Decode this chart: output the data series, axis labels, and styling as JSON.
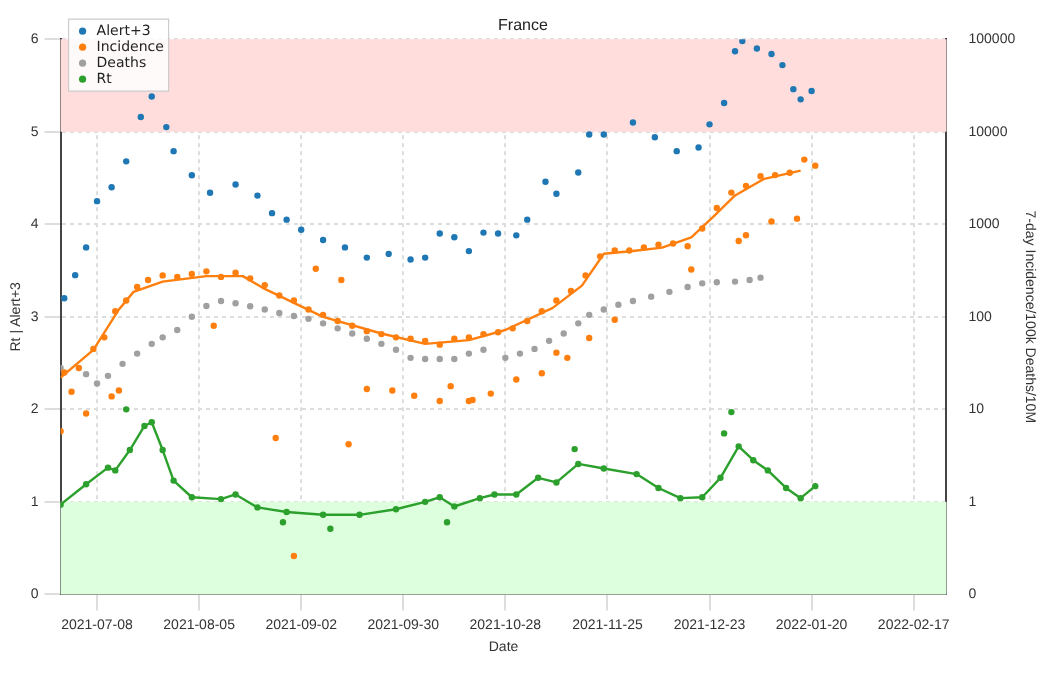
{
  "chart_data": {
    "type": "scatter",
    "title": "France",
    "xlabel": "Date",
    "ylabel": "Rt | Alert+3",
    "y2label": "7-day Incidence/100k Deaths/10M",
    "xlim": [
      "2021-06-28",
      "2022-02-26"
    ],
    "xticks": [
      "2021-07-08",
      "2021-08-05",
      "2021-09-02",
      "2021-09-30",
      "2021-10-28",
      "2021-11-25",
      "2021-12-23",
      "2022-01-20",
      "2022-02-17"
    ],
    "ylim": [
      0,
      6
    ],
    "yticks": [
      0,
      1,
      2,
      3,
      4,
      5,
      6
    ],
    "y2lim": [
      0.1,
      100000
    ],
    "y2ticks": [
      {
        "value": 0.1,
        "label": "0"
      },
      1,
      10,
      100,
      1000,
      10000,
      100000
    ],
    "log": "y2",
    "grid": true,
    "legend": "top left",
    "marker": "circle",
    "bands": [
      {
        "axis": "y",
        "from": 5,
        "to": 6,
        "color": "#ffdddd"
      },
      {
        "axis": "y",
        "from": 0,
        "to": 1,
        "color": "#ddffdd"
      }
    ],
    "series": [
      {
        "name": "Alert+3",
        "color": "#1f77b4",
        "x": [
          "2021-06-29",
          "2021-07-02",
          "2021-07-05",
          "2021-07-08",
          "2021-07-12",
          "2021-07-16",
          "2021-07-20",
          "2021-07-23",
          "2021-07-27",
          "2021-07-29",
          "2021-08-03",
          "2021-08-08",
          "2021-08-15",
          "2021-08-21",
          "2021-08-25",
          "2021-08-29",
          "2021-09-02",
          "2021-09-08",
          "2021-09-14",
          "2021-09-20",
          "2021-09-26",
          "2021-10-02",
          "2021-10-06",
          "2021-10-10",
          "2021-10-14",
          "2021-10-18",
          "2021-10-22",
          "2021-10-26",
          "2021-10-31",
          "2021-11-03",
          "2021-11-08",
          "2021-11-11",
          "2021-11-17",
          "2021-11-20",
          "2021-11-24",
          "2021-12-02",
          "2021-12-08",
          "2021-12-14",
          "2021-12-20",
          "2021-12-23",
          "2021-12-27",
          "2021-12-30",
          "2022-01-01",
          "2022-01-05",
          "2022-01-09",
          "2022-01-12",
          "2022-01-15",
          "2022-01-17",
          "2022-01-20"
        ],
        "values": [
          3.2,
          3.45,
          3.75,
          4.25,
          4.4,
          4.68,
          5.16,
          5.38,
          5.05,
          4.79,
          4.53,
          4.34,
          4.43,
          4.31,
          4.12,
          4.05,
          3.94,
          3.83,
          3.75,
          3.64,
          3.68,
          3.62,
          3.64,
          3.9,
          3.86,
          3.71,
          3.91,
          3.9,
          3.88,
          4.05,
          4.46,
          4.33,
          4.56,
          4.97,
          4.97,
          5.1,
          4.94,
          4.79,
          4.83,
          5.08,
          5.31,
          5.87,
          5.98,
          5.9,
          5.84,
          5.72,
          5.46,
          5.35,
          5.44
        ]
      },
      {
        "name": "Incidence",
        "color": "#ff7f0e",
        "axis": "y2",
        "x": [
          "2021-06-29",
          "2021-07-03",
          "2021-07-07",
          "2021-07-10",
          "2021-07-13",
          "2021-07-16",
          "2021-07-19",
          "2021-07-22",
          "2021-07-26",
          "2021-07-30",
          "2021-08-03",
          "2021-08-07",
          "2021-08-11",
          "2021-08-15",
          "2021-08-19",
          "2021-08-23",
          "2021-08-27",
          "2021-08-31",
          "2021-09-04",
          "2021-09-08",
          "2021-09-12",
          "2021-09-16",
          "2021-09-20",
          "2021-09-24",
          "2021-09-28",
          "2021-10-02",
          "2021-10-06",
          "2021-10-10",
          "2021-10-14",
          "2021-10-18",
          "2021-10-22",
          "2021-10-26",
          "2021-10-30",
          "2021-11-03",
          "2021-11-07",
          "2021-11-11",
          "2021-11-15",
          "2021-11-19",
          "2021-11-23",
          "2021-11-27",
          "2021-12-01",
          "2021-12-05",
          "2021-12-09",
          "2021-12-13",
          "2021-12-17",
          "2021-12-21",
          "2021-12-25",
          "2021-12-29",
          "2022-01-02",
          "2022-01-06",
          "2022-01-10",
          "2022-01-14",
          "2022-01-18",
          "2022-01-21",
          "2021-06-28",
          "2021-07-01",
          "2021-07-05",
          "2021-07-12",
          "2021-07-14",
          "2021-08-09",
          "2021-08-26",
          "2021-08-31",
          "2021-09-06",
          "2021-09-13",
          "2021-09-15",
          "2021-09-20",
          "2021-09-27",
          "2021-10-03",
          "2021-10-10",
          "2021-10-13",
          "2021-10-18",
          "2021-10-19",
          "2021-10-24",
          "2021-10-31",
          "2021-11-07",
          "2021-11-11",
          "2021-11-14",
          "2021-11-20",
          "2021-11-27",
          "2021-12-18",
          "2021-12-31",
          "2022-01-02",
          "2022-01-09",
          "2022-01-16"
        ],
        "values": [
          25,
          28,
          45,
          60,
          115,
          150,
          210,
          250,
          280,
          270,
          290,
          310,
          270,
          300,
          260,
          220,
          170,
          150,
          120,
          105,
          90,
          80,
          70,
          65,
          60,
          58,
          55,
          50,
          58,
          60,
          65,
          68,
          75,
          90,
          115,
          150,
          190,
          280,
          450,
          520,
          520,
          560,
          600,
          620,
          580,
          900,
          1500,
          2200,
          2600,
          3300,
          3400,
          3600,
          5000,
          4300,
          5.8,
          15.5,
          9,
          13.8,
          16,
          80,
          4.9,
          0.26,
          330,
          250,
          4.2,
          16.6,
          16,
          14,
          12.3,
          17.8,
          12.3,
          12.6,
          14.8,
          21,
          24.5,
          41,
          36,
          59,
          93,
          325,
          660,
          760,
          1070,
          1150
        ]
      },
      {
        "color": "#ff7f0e",
        "type": "line",
        "marker": "none",
        "axis": "y2",
        "x": [
          "2021-06-28",
          "2021-07-07",
          "2021-07-14",
          "2021-07-18",
          "2021-07-26",
          "2021-08-07",
          "2021-08-17",
          "2021-08-23",
          "2021-09-08",
          "2021-09-24",
          "2021-10-06",
          "2021-10-18",
          "2021-10-28",
          "2021-11-10",
          "2021-11-18",
          "2021-11-24",
          "2021-12-02",
          "2021-12-10",
          "2021-12-18",
          "2021-12-24",
          "2021-12-30",
          "2022-01-07",
          "2022-01-17"
        ],
        "values": [
          22,
          44,
          120,
          186,
          240,
          275,
          275,
          200,
          100,
          66,
          51,
          56,
          72,
          125,
          217,
          480,
          515,
          560,
          720,
          1200,
          2050,
          3100,
          3800
        ]
      },
      {
        "name": "Deaths",
        "color": "#a0a0a0",
        "axis": "y2",
        "x": [
          "2021-06-28",
          "2021-07-05",
          "2021-07-08",
          "2021-07-11",
          "2021-07-15",
          "2021-07-19",
          "2021-07-23",
          "2021-07-26",
          "2021-07-30",
          "2021-08-03",
          "2021-08-07",
          "2021-08-11",
          "2021-08-15",
          "2021-08-19",
          "2021-08-23",
          "2021-08-27",
          "2021-08-31",
          "2021-09-04",
          "2021-09-08",
          "2021-09-12",
          "2021-09-16",
          "2021-09-20",
          "2021-09-24",
          "2021-09-28",
          "2021-10-02",
          "2021-10-06",
          "2021-10-10",
          "2021-10-14",
          "2021-10-18",
          "2021-10-22",
          "2021-10-28",
          "2021-11-01",
          "2021-11-05",
          "2021-11-09",
          "2021-11-13",
          "2021-11-17",
          "2021-11-20",
          "2021-11-24",
          "2021-11-28",
          "2021-12-02",
          "2021-12-07",
          "2021-12-12",
          "2021-12-17",
          "2021-12-21",
          "2021-12-25",
          "2021-12-30",
          "2022-01-03",
          "2022-01-06"
        ],
        "values": [
          28,
          24,
          19,
          23,
          31,
          40,
          51,
          60,
          72,
          100,
          131,
          148,
          140,
          130,
          120,
          110,
          102,
          95,
          85,
          75,
          66,
          58,
          51,
          44,
          36,
          35,
          35,
          35,
          40,
          44,
          36,
          40,
          45,
          55,
          66,
          85,
          105,
          120,
          135,
          148,
          165,
          186,
          210,
          230,
          236,
          240,
          250,
          265
        ]
      },
      {
        "name": "Rt",
        "color": "#2ca02c",
        "x": [
          "2021-06-28",
          "2021-07-05",
          "2021-07-11",
          "2021-07-13",
          "2021-07-17",
          "2021-07-21",
          "2021-07-23",
          "2021-07-26",
          "2021-07-29",
          "2021-08-03",
          "2021-08-11",
          "2021-08-15",
          "2021-08-21",
          "2021-08-29",
          "2021-09-08",
          "2021-09-18",
          "2021-09-28",
          "2021-10-06",
          "2021-10-10",
          "2021-10-14",
          "2021-10-21",
          "2021-10-25",
          "2021-10-31",
          "2021-11-06",
          "2021-11-11",
          "2021-11-17",
          "2021-11-24",
          "2021-12-03",
          "2021-12-09",
          "2021-12-15",
          "2021-12-21",
          "2021-12-26",
          "2021-12-31",
          "2022-01-04",
          "2022-01-08",
          "2022-01-13",
          "2022-01-17",
          "2022-01-21",
          "2021-07-16",
          "2021-08-28",
          "2021-09-10",
          "2021-10-12",
          "2021-11-16",
          "2021-12-27",
          "2021-12-29"
        ],
        "values": [
          0.97,
          1.19,
          1.37,
          1.34,
          1.56,
          1.82,
          1.86,
          1.56,
          1.23,
          1.05,
          1.03,
          1.08,
          0.94,
          0.89,
          0.86,
          0.86,
          0.92,
          1.0,
          1.05,
          0.95,
          1.04,
          1.08,
          1.08,
          1.26,
          1.21,
          1.41,
          1.36,
          1.3,
          1.15,
          1.04,
          1.05,
          1.26,
          1.6,
          1.45,
          1.34,
          1.15,
          1.04,
          1.17,
          2.0,
          0.78,
          0.71,
          0.78,
          1.57,
          1.74,
          1.97
        ]
      },
      {
        "color": "#2ca02c",
        "type": "line",
        "marker": "none",
        "x": [
          "2021-06-28",
          "2021-07-05",
          "2021-07-11",
          "2021-07-13",
          "2021-07-17",
          "2021-07-21",
          "2021-07-23",
          "2021-07-26",
          "2021-07-29",
          "2021-08-03",
          "2021-08-11",
          "2021-08-15",
          "2021-08-21",
          "2021-08-29",
          "2021-09-08",
          "2021-09-18",
          "2021-09-28",
          "2021-10-06",
          "2021-10-10",
          "2021-10-14",
          "2021-10-21",
          "2021-10-25",
          "2021-10-31",
          "2021-11-06",
          "2021-11-11",
          "2021-11-17",
          "2021-11-24",
          "2021-12-03",
          "2021-12-09",
          "2021-12-15",
          "2021-12-21",
          "2021-12-26",
          "2021-12-31",
          "2022-01-04",
          "2022-01-08",
          "2022-01-13",
          "2022-01-17",
          "2022-01-21"
        ],
        "values": [
          0.97,
          1.19,
          1.37,
          1.34,
          1.56,
          1.82,
          1.86,
          1.56,
          1.23,
          1.05,
          1.03,
          1.08,
          0.94,
          0.89,
          0.86,
          0.86,
          0.92,
          1.0,
          1.05,
          0.95,
          1.04,
          1.08,
          1.08,
          1.26,
          1.21,
          1.41,
          1.36,
          1.3,
          1.15,
          1.04,
          1.05,
          1.26,
          1.6,
          1.45,
          1.34,
          1.15,
          1.04,
          1.17
        ]
      }
    ]
  }
}
